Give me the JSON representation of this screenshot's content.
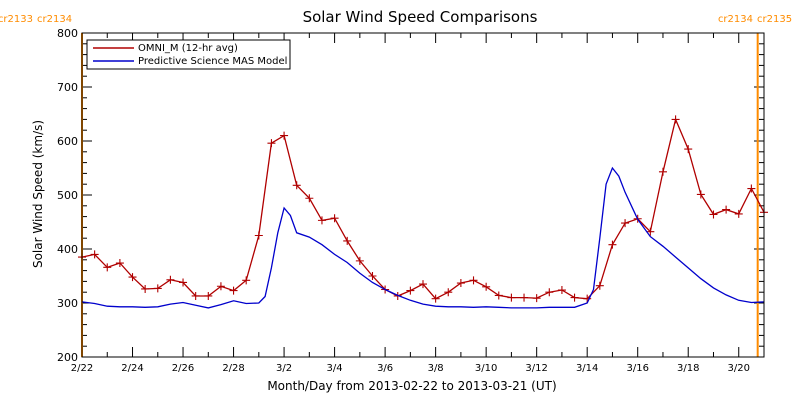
{
  "chart_data": {
    "type": "line",
    "title": "Solar Wind Speed Comparisons",
    "xlabel": "Month/Day from 2013-02-22 to 2013-03-21 (UT)",
    "ylabel": "Solar Wind Speed (km/s)",
    "xlim": [
      "2013-02-22",
      "2013-03-21"
    ],
    "ylim": [
      200,
      800
    ],
    "yticks": [
      200,
      300,
      400,
      500,
      600,
      700,
      800
    ],
    "xticks": [
      {
        "date": "2013-02-22",
        "label": "2/22"
      },
      {
        "date": "2013-02-24",
        "label": "2/24"
      },
      {
        "date": "2013-02-26",
        "label": "2/26"
      },
      {
        "date": "2013-02-28",
        "label": "2/28"
      },
      {
        "date": "2013-03-02",
        "label": "3/2"
      },
      {
        "date": "2013-03-04",
        "label": "3/4"
      },
      {
        "date": "2013-03-06",
        "label": "3/6"
      },
      {
        "date": "2013-03-08",
        "label": "3/8"
      },
      {
        "date": "2013-03-10",
        "label": "3/10"
      },
      {
        "date": "2013-03-12",
        "label": "3/12"
      },
      {
        "date": "2013-03-14",
        "label": "3/14"
      },
      {
        "date": "2013-03-16",
        "label": "3/16"
      },
      {
        "date": "2013-03-18",
        "label": "3/18"
      },
      {
        "date": "2013-03-20",
        "label": "3/20"
      }
    ],
    "legend_position": "top-left",
    "carrington_markers": [
      {
        "date": "2013-02-22",
        "left_label": "cr2133",
        "right_label": "cr2134",
        "label_side": "left"
      },
      {
        "date": "2013-03-20T18:00",
        "left_label": "cr2134",
        "right_label": "cr2135",
        "label_side": "right"
      }
    ],
    "series": [
      {
        "name": "OMNI_M (12-hr avg)",
        "color": "#b00000",
        "marker": "plus",
        "points": [
          [
            "2013-02-22T00:00",
            385
          ],
          [
            "2013-02-22T12:00",
            390
          ],
          [
            "2013-02-23T00:00",
            366
          ],
          [
            "2013-02-23T12:00",
            374
          ],
          [
            "2013-02-24T00:00",
            348
          ],
          [
            "2013-02-24T12:00",
            326
          ],
          [
            "2013-02-25T00:00",
            327
          ],
          [
            "2013-02-25T12:00",
            343
          ],
          [
            "2013-02-26T00:00",
            338
          ],
          [
            "2013-02-26T12:00",
            313
          ],
          [
            "2013-02-27T00:00",
            313
          ],
          [
            "2013-02-27T12:00",
            331
          ],
          [
            "2013-02-28T00:00",
            323
          ],
          [
            "2013-02-28T12:00",
            342
          ],
          [
            "2013-03-01T00:00",
            425
          ],
          [
            "2013-03-01T12:00",
            596
          ],
          [
            "2013-03-02T00:00",
            610
          ],
          [
            "2013-03-02T12:00",
            518
          ],
          [
            "2013-03-03T00:00",
            494
          ],
          [
            "2013-03-03T12:00",
            453
          ],
          [
            "2013-03-04T00:00",
            457
          ],
          [
            "2013-03-04T12:00",
            415
          ],
          [
            "2013-03-05T00:00",
            378
          ],
          [
            "2013-03-05T12:00",
            350
          ],
          [
            "2013-03-06T00:00",
            325
          ],
          [
            "2013-03-06T12:00",
            313
          ],
          [
            "2013-03-07T00:00",
            323
          ],
          [
            "2013-03-07T12:00",
            335
          ],
          [
            "2013-03-08T00:00",
            308
          ],
          [
            "2013-03-08T12:00",
            320
          ],
          [
            "2013-03-09T00:00",
            337
          ],
          [
            "2013-03-09T12:00",
            342
          ],
          [
            "2013-03-10T00:00",
            330
          ],
          [
            "2013-03-10T12:00",
            314
          ],
          [
            "2013-03-11T00:00",
            310
          ],
          [
            "2013-03-11T12:00",
            310
          ],
          [
            "2013-03-12T00:00",
            309
          ],
          [
            "2013-03-12T12:00",
            320
          ],
          [
            "2013-03-13T00:00",
            324
          ],
          [
            "2013-03-13T12:00",
            310
          ],
          [
            "2013-03-14T00:00",
            308
          ],
          [
            "2013-03-14T12:00",
            332
          ],
          [
            "2013-03-15T00:00",
            408
          ],
          [
            "2013-03-15T12:00",
            448
          ],
          [
            "2013-03-16T00:00",
            456
          ],
          [
            "2013-03-16T12:00",
            432
          ],
          [
            "2013-03-17T00:00",
            543
          ],
          [
            "2013-03-17T12:00",
            640
          ],
          [
            "2013-03-18T00:00",
            585
          ],
          [
            "2013-03-18T12:00",
            501
          ],
          [
            "2013-03-19T00:00",
            464
          ],
          [
            "2013-03-19T12:00",
            473
          ],
          [
            "2013-03-20T00:00",
            465
          ],
          [
            "2013-03-20T12:00",
            512
          ],
          [
            "2013-03-21T00:00",
            468
          ]
        ]
      },
      {
        "name": "Predictive Science MAS Model",
        "color": "#0000cc",
        "marker": "none",
        "points": [
          [
            "2013-02-22T00:00",
            302
          ],
          [
            "2013-02-22T12:00",
            299
          ],
          [
            "2013-02-23T00:00",
            294
          ],
          [
            "2013-02-23T12:00",
            293
          ],
          [
            "2013-02-24T00:00",
            293
          ],
          [
            "2013-02-24T12:00",
            292
          ],
          [
            "2013-02-25T00:00",
            293
          ],
          [
            "2013-02-25T12:00",
            298
          ],
          [
            "2013-02-26T00:00",
            301
          ],
          [
            "2013-02-26T12:00",
            296
          ],
          [
            "2013-02-27T00:00",
            291
          ],
          [
            "2013-02-27T12:00",
            297
          ],
          [
            "2013-02-28T00:00",
            304
          ],
          [
            "2013-02-28T12:00",
            299
          ],
          [
            "2013-03-01T00:00",
            300
          ],
          [
            "2013-03-01T06:00",
            312
          ],
          [
            "2013-03-01T12:00",
            365
          ],
          [
            "2013-03-01T18:00",
            430
          ],
          [
            "2013-03-02T00:00",
            476
          ],
          [
            "2013-03-02T06:00",
            462
          ],
          [
            "2013-03-02T12:00",
            430
          ],
          [
            "2013-03-03T00:00",
            422
          ],
          [
            "2013-03-03T12:00",
            408
          ],
          [
            "2013-03-04T00:00",
            390
          ],
          [
            "2013-03-04T12:00",
            375
          ],
          [
            "2013-03-05T00:00",
            355
          ],
          [
            "2013-03-05T12:00",
            338
          ],
          [
            "2013-03-06T00:00",
            325
          ],
          [
            "2013-03-06T12:00",
            314
          ],
          [
            "2013-03-07T00:00",
            305
          ],
          [
            "2013-03-07T12:00",
            298
          ],
          [
            "2013-03-08T00:00",
            294
          ],
          [
            "2013-03-08T12:00",
            293
          ],
          [
            "2013-03-09T00:00",
            293
          ],
          [
            "2013-03-09T12:00",
            292
          ],
          [
            "2013-03-10T00:00",
            293
          ],
          [
            "2013-03-10T12:00",
            292
          ],
          [
            "2013-03-11T00:00",
            291
          ],
          [
            "2013-03-11T12:00",
            291
          ],
          [
            "2013-03-12T00:00",
            291
          ],
          [
            "2013-03-12T12:00",
            292
          ],
          [
            "2013-03-13T00:00",
            292
          ],
          [
            "2013-03-13T12:00",
            292
          ],
          [
            "2013-03-14T00:00",
            300
          ],
          [
            "2013-03-14T06:00",
            325
          ],
          [
            "2013-03-14T12:00",
            420
          ],
          [
            "2013-03-14T18:00",
            520
          ],
          [
            "2013-03-15T00:00",
            550
          ],
          [
            "2013-03-15T06:00",
            535
          ],
          [
            "2013-03-15T12:00",
            505
          ],
          [
            "2013-03-16T00:00",
            455
          ],
          [
            "2013-03-16T12:00",
            423
          ],
          [
            "2013-03-17T00:00",
            405
          ],
          [
            "2013-03-17T12:00",
            385
          ],
          [
            "2013-03-18T00:00",
            365
          ],
          [
            "2013-03-18T12:00",
            345
          ],
          [
            "2013-03-19T00:00",
            328
          ],
          [
            "2013-03-19T12:00",
            315
          ],
          [
            "2013-03-20T00:00",
            305
          ],
          [
            "2013-03-20T12:00",
            301
          ],
          [
            "2013-03-21T00:00",
            302
          ]
        ]
      }
    ]
  }
}
